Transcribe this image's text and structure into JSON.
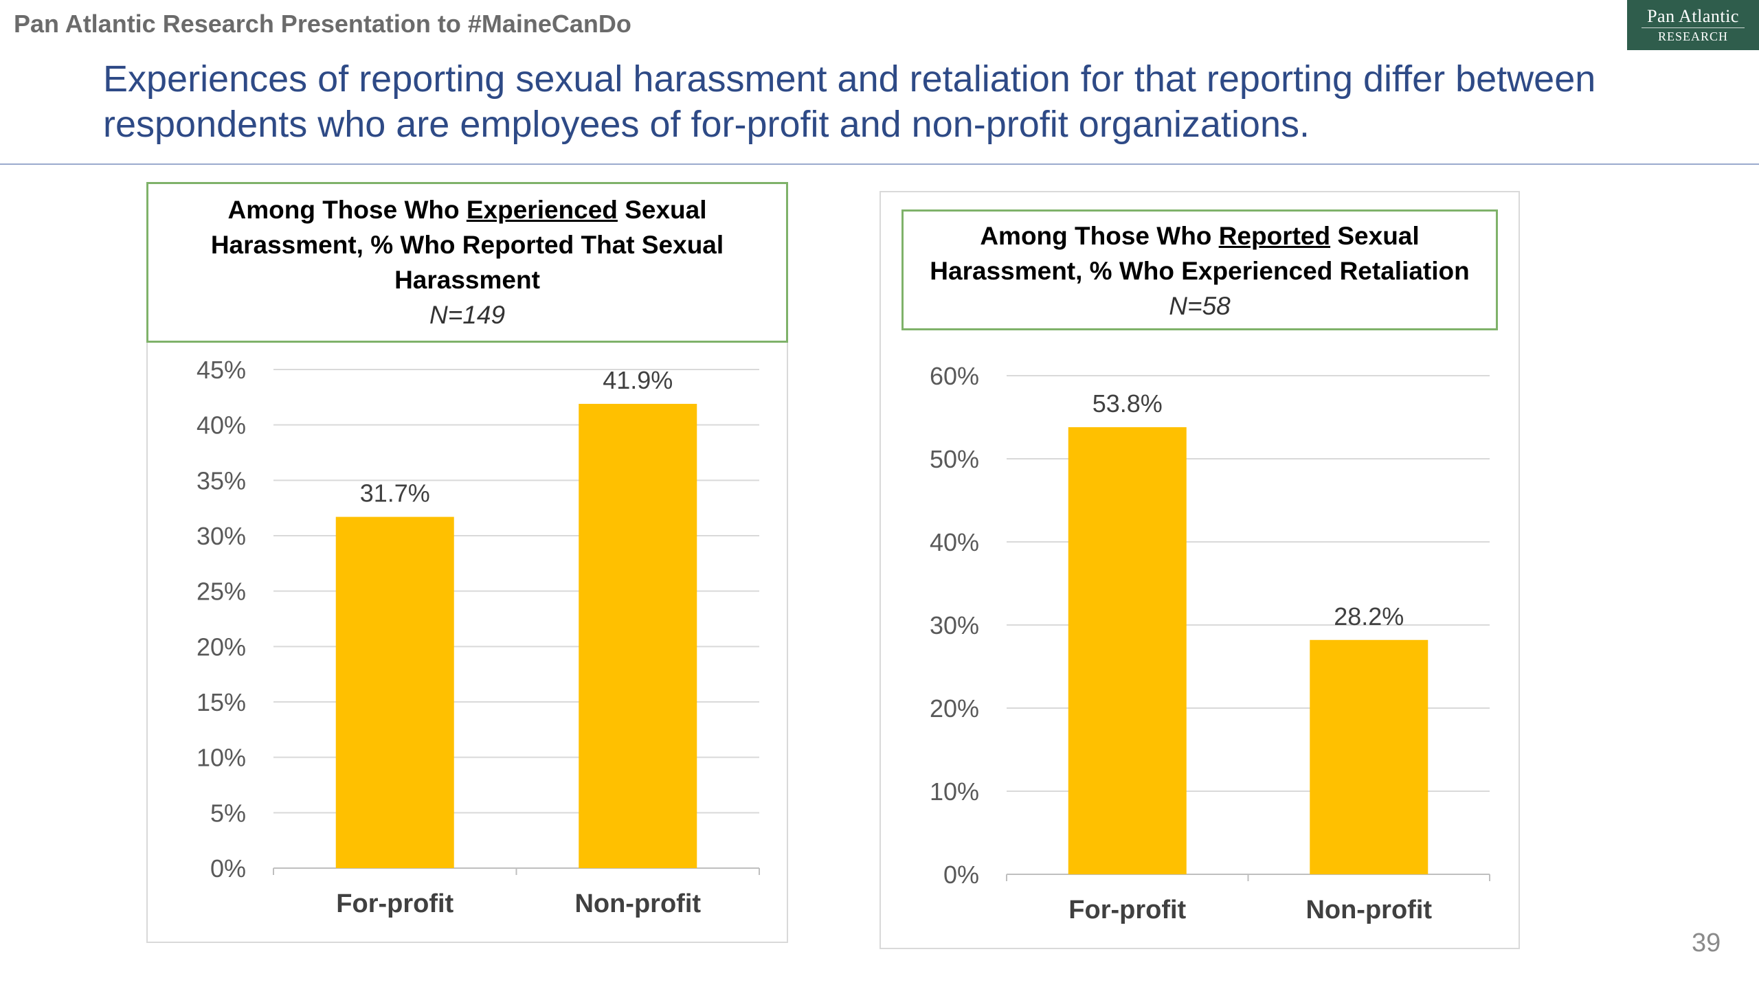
{
  "header": {
    "text": "Pan Atlantic Research Presentation to #MaineCanDo",
    "logo_line1": "Pan Atlantic",
    "logo_line2": "RESEARCH"
  },
  "slide": {
    "title": "Experiences of reporting sexual harassment and retaliation for that reporting differ between respondents who are employees of for-profit and non-profit organizations.",
    "page_number": "39"
  },
  "colors": {
    "bar": "#FFC000",
    "box_border": "#7FB26A",
    "title": "#2E4A86"
  },
  "chart_data": [
    {
      "type": "bar",
      "title_part1": "Among Those Who ",
      "title_underlined": "Experienced",
      "title_part2": " Sexual Harassment, % Who Reported That Sexual Harassment",
      "subtitle": "N=149",
      "categories": [
        "For-profit",
        "Non-profit"
      ],
      "values": [
        31.7,
        41.9
      ],
      "data_labels": [
        "31.7%",
        "41.9%"
      ],
      "ylim": [
        0,
        45
      ],
      "yticks": [
        0,
        5,
        10,
        15,
        20,
        25,
        30,
        35,
        40,
        45
      ],
      "ytick_labels": [
        "0%",
        "5%",
        "10%",
        "15%",
        "20%",
        "25%",
        "30%",
        "35%",
        "40%",
        "45%"
      ],
      "grid": true,
      "legend": "none"
    },
    {
      "type": "bar",
      "title_part1": "Among Those Who ",
      "title_underlined": "Reported",
      "title_part2": " Sexual Harassment, % Who Experienced Retaliation",
      "subtitle": "N=58",
      "categories": [
        "For-profit",
        "Non-profit"
      ],
      "values": [
        53.8,
        28.2
      ],
      "data_labels": [
        "53.8%",
        "28.2%"
      ],
      "ylim": [
        0,
        60
      ],
      "yticks": [
        0,
        10,
        20,
        30,
        40,
        50,
        60
      ],
      "ytick_labels": [
        "0%",
        "10%",
        "20%",
        "30%",
        "40%",
        "50%",
        "60%"
      ],
      "grid": true,
      "legend": "none"
    }
  ]
}
